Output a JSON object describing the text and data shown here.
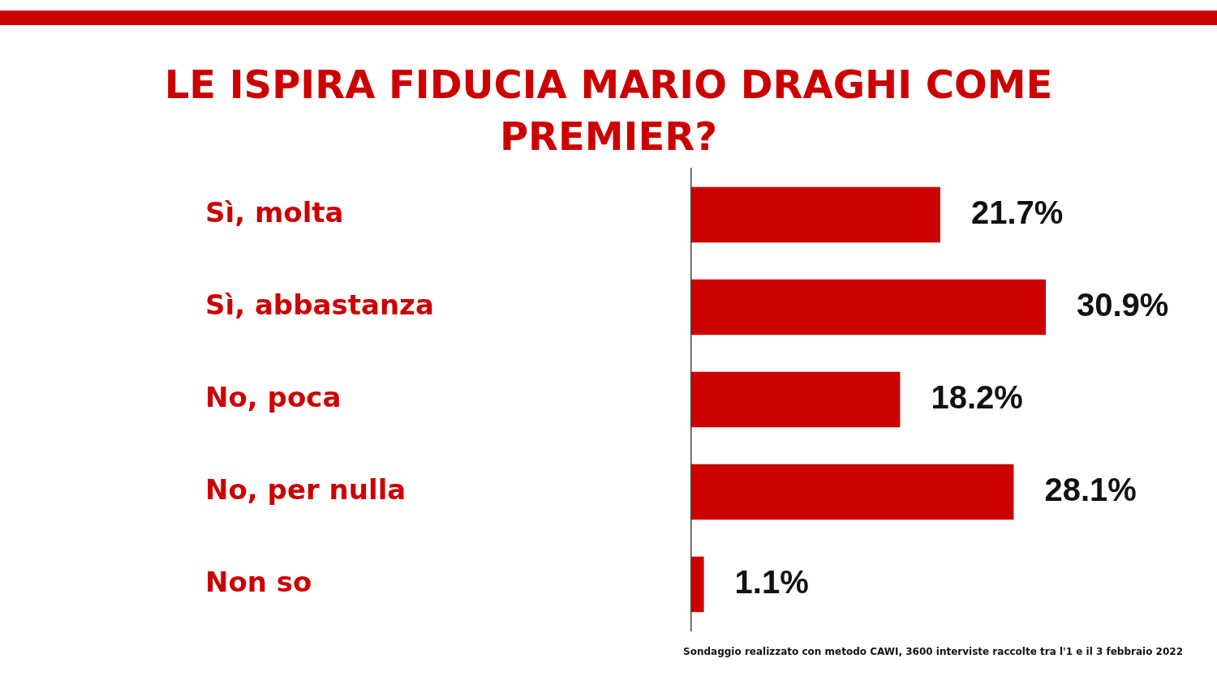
{
  "chart_data": {
    "type": "bar",
    "orientation": "horizontal",
    "title": "LE ISPIRA FIDUCIA MARIO DRAGHI COME PREMIER?",
    "categories": [
      "Sì, molta",
      "Sì, abbastanza",
      "No, poca",
      "No, per nulla",
      "Non so"
    ],
    "values": [
      21.7,
      30.9,
      18.2,
      28.1,
      1.1
    ],
    "value_labels": [
      "21.7%",
      "30.9%",
      "18.2%",
      "28.1%",
      "1.1%"
    ],
    "color": "#cc0000",
    "tick_labels": "y",
    "grid": false,
    "legend": false,
    "annotations": [
      "Sondaggio realizzato con metodo CAWI, 3600 interviste raccolte tra l'1 e il 3 febbraio 2022"
    ]
  }
}
